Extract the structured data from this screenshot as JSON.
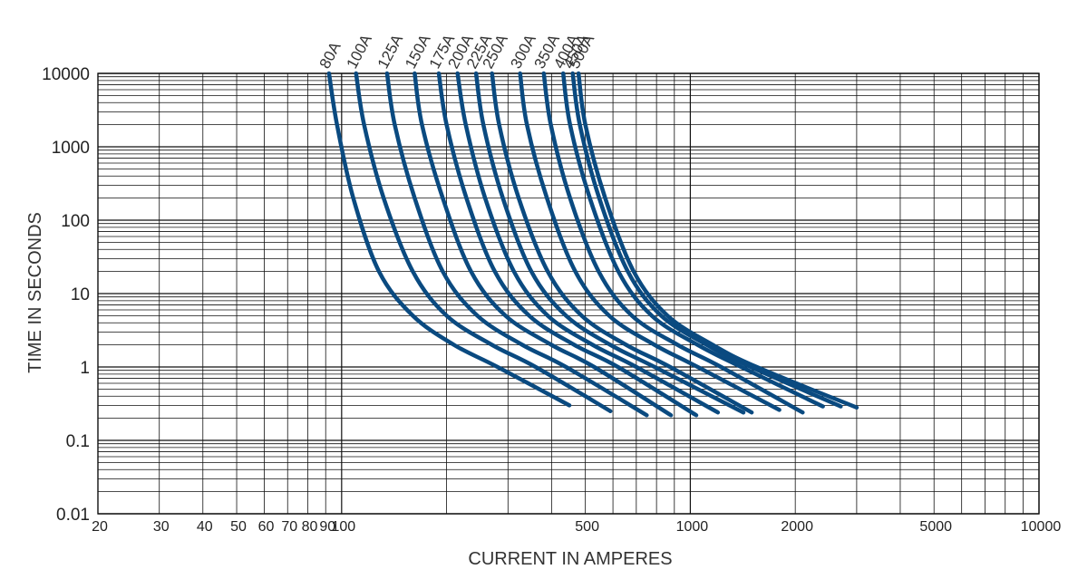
{
  "chart_data": {
    "type": "line",
    "title": "",
    "xlabel": "CURRENT IN AMPERES",
    "ylabel": "TIME IN SECONDS",
    "x_scale": "log",
    "y_scale": "log",
    "xlim": [
      20,
      10000
    ],
    "ylim": [
      0.01,
      10000
    ],
    "grid": true,
    "legend": "curve labels at top",
    "line_color": "#0a4a80",
    "x_tick_labels": [
      {
        "value": 20,
        "label": "20"
      },
      {
        "value": 30,
        "label": "30"
      },
      {
        "value": 40,
        "label": "40"
      },
      {
        "value": 50,
        "label": "50"
      },
      {
        "value": 60,
        "label": "60"
      },
      {
        "value": 70,
        "label": "70"
      },
      {
        "value": 80,
        "label": "80"
      },
      {
        "value": 90,
        "label": "90"
      },
      {
        "value": 100,
        "label": "100"
      },
      {
        "value": 500,
        "label": "500"
      },
      {
        "value": 1000,
        "label": "1000"
      },
      {
        "value": 2000,
        "label": "2000"
      },
      {
        "value": 5000,
        "label": "5000"
      },
      {
        "value": 10000,
        "label": "10000"
      }
    ],
    "y_tick_labels": [
      {
        "value": 10000,
        "label": "10000"
      },
      {
        "value": 1000,
        "label": "1000"
      },
      {
        "value": 100,
        "label": "100"
      },
      {
        "value": 10,
        "label": "10"
      },
      {
        "value": 1,
        "label": "1"
      },
      {
        "value": 0.1,
        "label": "0.1"
      },
      {
        "value": 0.01,
        "label": "0.01"
      }
    ],
    "series": [
      {
        "name": "80A",
        "x": [
          92,
          97,
          108,
          128,
          160,
          210,
          280,
          450
        ],
        "y": [
          10000,
          2000,
          200,
          20,
          5,
          2,
          1,
          0.3
        ]
      },
      {
        "name": "100A",
        "x": [
          110,
          116,
          132,
          160,
          200,
          270,
          360,
          590
        ],
        "y": [
          10000,
          2000,
          200,
          20,
          5,
          2,
          1,
          0.25
        ]
      },
      {
        "name": "125A",
        "x": [
          135,
          142,
          162,
          195,
          245,
          330,
          440,
          750
        ],
        "y": [
          10000,
          2000,
          200,
          20,
          5,
          2,
          1,
          0.22
        ]
      },
      {
        "name": "150A",
        "x": [
          162,
          170,
          195,
          235,
          295,
          400,
          530,
          880
        ],
        "y": [
          10000,
          2000,
          200,
          20,
          5,
          2,
          1,
          0.22
        ]
      },
      {
        "name": "175A",
        "x": [
          190,
          200,
          228,
          275,
          345,
          465,
          620,
          1040
        ],
        "y": [
          10000,
          2000,
          200,
          20,
          5,
          2,
          1,
          0.22
        ]
      },
      {
        "name": "200A",
        "x": [
          215,
          227,
          258,
          312,
          390,
          525,
          700,
          1200
        ],
        "y": [
          10000,
          2000,
          200,
          20,
          5,
          2,
          1,
          0.24
        ]
      },
      {
        "name": "225A",
        "x": [
          243,
          255,
          290,
          350,
          440,
          590,
          790,
          1420
        ],
        "y": [
          10000,
          2000,
          200,
          20,
          5,
          2,
          1,
          0.24
        ]
      },
      {
        "name": "250A",
        "x": [
          270,
          283,
          322,
          390,
          488,
          655,
          875,
          1500
        ],
        "y": [
          10000,
          2000,
          200,
          20,
          5,
          2,
          1,
          0.24
        ]
      },
      {
        "name": "300A",
        "x": [
          325,
          340,
          388,
          468,
          585,
          790,
          1050,
          1800
        ],
        "y": [
          10000,
          2000,
          200,
          20,
          5,
          2,
          1,
          0.26
        ]
      },
      {
        "name": "350A",
        "x": [
          380,
          398,
          452,
          546,
          680,
          920,
          1225,
          2100
        ],
        "y": [
          10000,
          2000,
          200,
          20,
          5,
          2,
          1,
          0.24
        ]
      },
      {
        "name": "400A",
        "x": [
          432,
          452,
          515,
          622,
          775,
          1050,
          1400,
          2400
        ],
        "y": [
          10000,
          2000,
          200,
          20,
          5,
          2,
          1,
          0.29
        ]
      },
      {
        "name": "450A",
        "x": [
          460,
          482,
          548,
          662,
          825,
          1115,
          1490,
          2700
        ],
        "y": [
          10000,
          2000,
          200,
          20,
          5,
          2,
          1,
          0.29
        ]
      },
      {
        "name": "500A",
        "x": [
          478,
          500,
          570,
          688,
          860,
          1160,
          1550,
          3000
        ],
        "y": [
          10000,
          2000,
          200,
          20,
          5,
          2,
          1,
          0.28
        ]
      }
    ]
  }
}
